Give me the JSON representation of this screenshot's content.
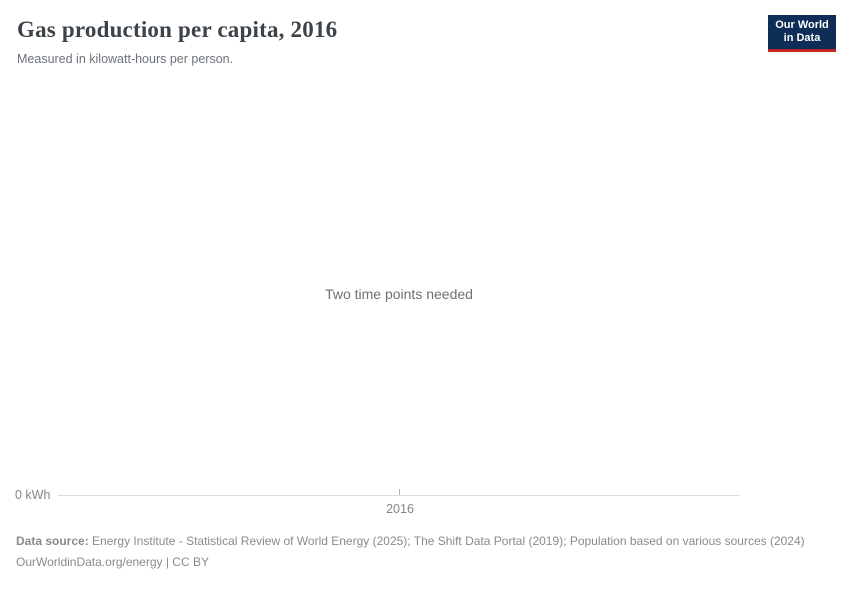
{
  "header": {
    "title": "Gas production per capita, 2016",
    "subtitle": "Measured in kilowatt-hours per person."
  },
  "logo": {
    "line1": "Our World",
    "line2": "in Data"
  },
  "message": "Two time points needed",
  "axis": {
    "y_zero_label": "0 kWh",
    "x_tick_label": "2016"
  },
  "footer": {
    "datasource_label": "Data source:",
    "datasource_text": "Energy Institute - Statistical Review of World Energy (2025); The Shift Data Portal (2019); Population based on various sources (2024)",
    "citation": "OurWorldinData.org/energy | CC BY"
  },
  "colors": {
    "logo_bg": "#0e2d57",
    "logo_stripe": "#c7241f",
    "axis_line": "#dbdddf"
  },
  "chart_data": {
    "type": "line",
    "title": "Gas production per capita, 2016",
    "subtitle": "Measured in kilowatt-hours per person.",
    "unit": "kilowatt-hours per person",
    "x_tick_labels": [
      "2016"
    ],
    "y_tick_labels": [
      "0 kWh"
    ],
    "series": [],
    "annotations": [
      "Two time points needed"
    ],
    "grid": false,
    "legend": "none"
  }
}
